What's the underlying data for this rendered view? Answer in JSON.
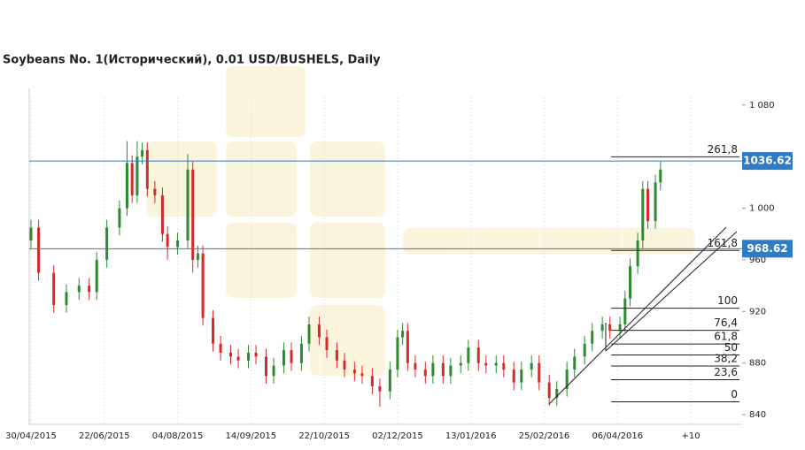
{
  "chart_data": {
    "type": "candlestick",
    "title": "Soybeans  No. 1(Исторический), 0.01 USD/BUSHELS, Daily",
    "up_color": "#2f8a2f",
    "down_color": "#d42a2a",
    "xlim": [
      -0.7,
      281.3
    ],
    "ylim": [
      832.5,
      1086
    ],
    "xticks": [
      {
        "value": 0,
        "label": "30/04/2015"
      },
      {
        "value": 29,
        "label": "22/06/2015"
      },
      {
        "value": 58,
        "label": "04/08/2015"
      },
      {
        "value": 87,
        "label": "14/09/2015"
      },
      {
        "value": 116,
        "label": "22/10/2015"
      },
      {
        "value": 145,
        "label": "02/12/2015"
      },
      {
        "value": 174,
        "label": "13/01/2016"
      },
      {
        "value": 203,
        "label": "25/02/2016"
      },
      {
        "value": 232,
        "label": "06/04/2016"
      },
      {
        "value": 261,
        "label": "+10"
      }
    ],
    "yticks": [
      {
        "value": 1080,
        "label": "1 080"
      },
      {
        "value": 1000,
        "label": "1 000"
      },
      960,
      920,
      880,
      840
    ],
    "x": [
      0,
      3,
      9,
      14,
      19,
      23,
      26,
      30,
      35,
      38,
      40,
      42,
      44,
      46,
      49,
      52,
      54,
      58,
      62,
      64,
      66,
      68,
      72,
      75,
      79,
      82,
      86,
      89,
      93,
      96,
      100,
      103,
      107,
      110,
      114,
      117,
      121,
      124,
      128,
      131,
      135,
      138,
      142,
      145,
      147,
      149,
      152,
      156,
      159,
      163,
      166,
      170,
      173,
      177,
      180,
      184,
      187,
      191,
      194,
      198,
      201,
      205,
      208,
      212,
      215,
      219,
      222,
      226,
      229,
      233,
      235,
      237,
      240,
      242,
      244,
      247,
      249
    ],
    "open": [
      975,
      985,
      950,
      925,
      935,
      940,
      935,
      960,
      985,
      1000,
      1035,
      1010,
      1040,
      1045,
      1015,
      1010,
      980,
      970,
      975,
      1030,
      960,
      965,
      915,
      895,
      888,
      885,
      882,
      888,
      885,
      870,
      878,
      890,
      880,
      895,
      910,
      900,
      890,
      882,
      875,
      872,
      870,
      862,
      858,
      875,
      900,
      905,
      880,
      875,
      870,
      880,
      870,
      878,
      880,
      892,
      880,
      878,
      880,
      875,
      865,
      875,
      880,
      865,
      853,
      860,
      875,
      885,
      895,
      905,
      910,
      905,
      910,
      930,
      955,
      975,
      1015,
      990,
      1020
    ],
    "high": [
      991,
      991,
      956,
      941,
      946,
      946,
      966,
      991,
      1006,
      1052,
      1041,
      1052,
      1051,
      1051,
      1021,
      1016,
      986,
      981,
      1042,
      1036,
      971,
      971,
      921,
      901,
      894,
      891,
      894,
      894,
      891,
      884,
      896,
      896,
      901,
      916,
      916,
      906,
      896,
      888,
      881,
      878,
      876,
      868,
      881,
      906,
      911,
      911,
      886,
      881,
      886,
      886,
      884,
      886,
      898,
      898,
      886,
      886,
      886,
      881,
      881,
      886,
      886,
      871,
      866,
      881,
      891,
      901,
      911,
      916,
      916,
      916,
      936,
      961,
      981,
      1021,
      1021,
      1026,
      1036
    ],
    "low": [
      969,
      944,
      919,
      919,
      929,
      929,
      929,
      954,
      979,
      994,
      1004,
      1004,
      1034,
      1009,
      1004,
      974,
      960,
      964,
      969,
      950,
      954,
      909,
      889,
      882,
      879,
      876,
      876,
      879,
      864,
      864,
      872,
      874,
      874,
      889,
      894,
      884,
      876,
      869,
      866,
      864,
      856,
      846,
      852,
      869,
      894,
      874,
      869,
      864,
      864,
      864,
      864,
      872,
      874,
      874,
      872,
      872,
      869,
      859,
      859,
      869,
      859,
      847,
      847,
      854,
      869,
      879,
      889,
      899,
      899,
      899,
      904,
      924,
      949,
      969,
      984,
      984,
      1014
    ],
    "close": [
      985,
      950,
      925,
      935,
      940,
      935,
      960,
      985,
      1000,
      1035,
      1010,
      1040,
      1045,
      1015,
      1010,
      980,
      970,
      975,
      1030,
      960,
      965,
      915,
      895,
      888,
      885,
      882,
      888,
      885,
      870,
      878,
      890,
      880,
      895,
      910,
      900,
      890,
      882,
      875,
      872,
      870,
      862,
      858,
      875,
      900,
      905,
      880,
      875,
      870,
      880,
      870,
      878,
      880,
      892,
      880,
      878,
      880,
      875,
      865,
      875,
      880,
      865,
      853,
      860,
      875,
      885,
      895,
      905,
      910,
      905,
      910,
      930,
      955,
      975,
      1015,
      990,
      1020,
      1030
    ],
    "price_lines": [
      1036.62,
      968.62
    ],
    "price_line_color": "#2f7bc4",
    "fib_labels": [
      "0",
      "23,6",
      "38,2",
      "50",
      "61,8",
      "76,4",
      "100",
      "161,8",
      "261,8"
    ],
    "fib_values": [
      850,
      867.1,
      877.7,
      886.25,
      894.8,
      905.4,
      922.5,
      967.3,
      1039.8
    ]
  }
}
